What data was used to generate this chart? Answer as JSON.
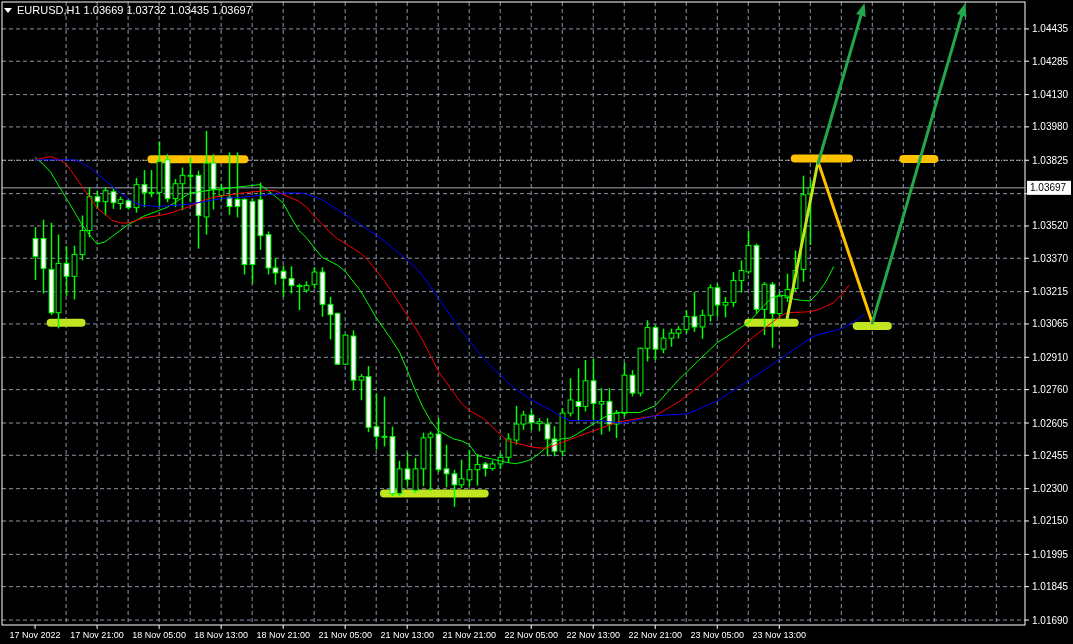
{
  "chart_data": {
    "type": "candlestick",
    "title": "EURUSD,H1  1.03669 1.03732 1.03435 1.03697",
    "color": "#00ff00",
    "categories": [
      "17 Nov 2022",
      null,
      null,
      null,
      null,
      null,
      null,
      null,
      "17 Nov 21:00",
      null,
      null,
      null,
      null,
      null,
      null,
      null,
      "18 Nov 05:00",
      null,
      null,
      null,
      null,
      null,
      null,
      null,
      "18 Nov 13:00",
      null,
      null,
      null,
      null,
      null,
      null,
      null,
      "18 Nov 21:00",
      null,
      null,
      null,
      null,
      null,
      null,
      null,
      "21 Nov 05:00",
      null,
      null,
      null,
      null,
      null,
      null,
      null,
      "21 Nov 13:00",
      null,
      null,
      null,
      null,
      null,
      null,
      null,
      "21 Nov 21:00",
      null,
      null,
      null,
      null,
      null,
      null,
      null,
      "22 Nov 05:00",
      null,
      null,
      null,
      null,
      null,
      null,
      null,
      "22 Nov 13:00",
      null,
      null,
      null,
      null,
      null,
      null,
      null,
      "22 Nov 21:00",
      null,
      null,
      null,
      null,
      null,
      null,
      null,
      "23 Nov 05:00",
      null,
      null,
      null,
      null,
      null,
      null,
      null,
      "23 Nov 13:00",
      null,
      null,
      null,
      null,
      null,
      null,
      null,
      null,
      null,
      null,
      null,
      null,
      null,
      null,
      null,
      null,
      null,
      null,
      null,
      null,
      null,
      null,
      null,
      null,
      null,
      null,
      null,
      null,
      null,
      null,
      null
    ],
    "ohlc": [
      [
        1.03462,
        1.03511,
        1.03272,
        1.03378
      ],
      [
        1.03462,
        1.03546,
        1.0321,
        1.03323
      ],
      [
        1.03318,
        1.03531,
        1.0311,
        1.03117
      ],
      [
        1.03117,
        1.03477,
        1.03048,
        1.03346
      ],
      [
        1.03346,
        1.03423,
        1.03199,
        1.03286
      ],
      [
        1.03286,
        1.03425,
        1.03182,
        1.03388
      ],
      [
        1.03388,
        1.03565,
        1.03364,
        1.03499
      ],
      [
        1.03499,
        1.03696,
        1.03472,
        1.03656
      ],
      [
        1.03656,
        1.03681,
        1.03603,
        1.03633
      ],
      [
        1.03633,
        1.03696,
        1.03573,
        1.03684
      ],
      [
        1.03679,
        1.03688,
        1.03603,
        1.03628
      ],
      [
        1.03624,
        1.03653,
        1.036,
        1.03642
      ],
      [
        1.03637,
        1.03645,
        1.036,
        1.03605
      ],
      [
        1.03605,
        1.03739,
        1.03585,
        1.03712
      ],
      [
        1.03712,
        1.03776,
        1.03611,
        1.03676
      ],
      [
        1.03676,
        1.03776,
        1.03657,
        1.03676
      ],
      [
        1.03676,
        1.03909,
        1.03611,
        1.03819
      ],
      [
        1.03827,
        1.0385,
        1.03634,
        1.03647
      ],
      [
        1.03647,
        1.03735,
        1.03611,
        1.03716
      ],
      [
        1.03716,
        1.03788,
        1.03596,
        1.03755
      ],
      [
        1.03755,
        1.03835,
        1.03634,
        1.03755
      ],
      [
        1.03755,
        1.03773,
        1.03418,
        1.03568
      ],
      [
        1.03562,
        1.03958,
        1.03483,
        1.03812
      ],
      [
        1.03812,
        1.0385,
        1.036,
        1.03691
      ],
      [
        1.03662,
        1.03713,
        1.03644,
        1.03687
      ],
      [
        1.03653,
        1.03858,
        1.03575,
        1.0361
      ],
      [
        1.03644,
        1.03858,
        1.03563,
        1.0361
      ],
      [
        1.03644,
        1.03644,
        1.03298,
        1.03341
      ],
      [
        1.03634,
        1.03644,
        1.03256,
        1.03341
      ],
      [
        1.03642,
        1.03718,
        1.03412,
        1.03475
      ],
      [
        1.0348,
        1.03491,
        1.03298,
        1.03325
      ],
      [
        1.03325,
        1.03367,
        1.03251,
        1.03302
      ],
      [
        1.0331,
        1.03333,
        1.03194,
        1.03276
      ],
      [
        1.03276,
        1.03329,
        1.0321,
        1.03244
      ],
      [
        1.03243,
        1.03249,
        1.03133,
        1.03243
      ],
      [
        1.03222,
        1.03259,
        1.03214,
        1.03244
      ],
      [
        1.03249,
        1.03325,
        1.03233,
        1.03306
      ],
      [
        1.03306,
        1.03325,
        1.03102,
        1.03156
      ],
      [
        1.03156,
        1.03187,
        1.02997,
        1.03108
      ],
      [
        1.03114,
        1.03114,
        1.02878,
        1.02878
      ],
      [
        1.02878,
        1.03013,
        1.02878,
        1.03013
      ],
      [
        1.03009,
        1.03032,
        1.02761,
        1.02804
      ],
      [
        1.02804,
        1.02829,
        1.02714,
        1.0282
      ],
      [
        1.0282,
        1.02866,
        1.02566,
        1.02585
      ],
      [
        1.02588,
        1.02739,
        1.02485,
        1.02543
      ],
      [
        1.02543,
        1.02724,
        1.025,
        1.02543
      ],
      [
        1.02542,
        1.02585,
        1.02269,
        1.02277
      ],
      [
        1.02277,
        1.02426,
        1.02269,
        1.02392
      ],
      [
        1.02392,
        1.02465,
        1.02315,
        1.02343
      ],
      [
        1.02292,
        1.02439,
        1.02283,
        1.02392
      ],
      [
        1.02392,
        1.02557,
        1.02315,
        1.02536
      ],
      [
        1.02539,
        1.02562,
        1.02292,
        1.02554
      ],
      [
        1.02554,
        1.02624,
        1.0238,
        1.02388
      ],
      [
        1.02392,
        1.025,
        1.0231,
        1.02369
      ],
      [
        1.02369,
        1.02384,
        1.02219,
        1.02318
      ],
      [
        1.02318,
        1.02431,
        1.02307,
        1.02346
      ],
      [
        1.02341,
        1.02477,
        1.02315,
        1.02388
      ],
      [
        1.02388,
        1.02458,
        1.02318,
        1.02412
      ],
      [
        1.02415,
        1.02421,
        1.0236,
        1.02394
      ],
      [
        1.02394,
        1.02427,
        1.02388,
        1.02415
      ],
      [
        1.02415,
        1.02462,
        1.02394,
        1.02446
      ],
      [
        1.02446,
        1.02554,
        1.02427,
        1.02531
      ],
      [
        1.02526,
        1.02681,
        1.02508,
        1.026
      ],
      [
        1.026,
        1.02658,
        1.02577,
        1.02642
      ],
      [
        1.02642,
        1.02662,
        1.02576,
        1.02607
      ],
      [
        1.02602,
        1.02624,
        1.0257,
        1.02611
      ],
      [
        1.026,
        1.02624,
        1.02454,
        1.02531
      ],
      [
        1.02531,
        1.02588,
        1.02454,
        1.02474
      ],
      [
        1.02474,
        1.0267,
        1.02454,
        1.02651
      ],
      [
        1.02651,
        1.0281,
        1.02639,
        1.02712
      ],
      [
        1.02705,
        1.02855,
        1.02616,
        1.02682
      ],
      [
        1.02682,
        1.02894,
        1.02662,
        1.02801
      ],
      [
        1.02801,
        1.02901,
        1.02616,
        1.02696
      ],
      [
        1.02693,
        1.02763,
        1.02554,
        1.02705
      ],
      [
        1.02705,
        1.02763,
        1.0257,
        1.026
      ],
      [
        1.026,
        1.02662,
        1.02539,
        1.0265
      ],
      [
        1.0265,
        1.02881,
        1.02639,
        1.02827
      ],
      [
        1.02827,
        1.02847,
        1.02732,
        1.02744
      ],
      [
        1.02744,
        1.02952,
        1.02732,
        1.02952
      ],
      [
        1.02952,
        1.03079,
        1.02894,
        1.03048
      ],
      [
        1.03048,
        1.03056,
        1.02901,
        1.02948
      ],
      [
        1.02948,
        1.0304,
        1.02932,
        1.02999
      ],
      [
        1.02999,
        1.0304,
        1.02963,
        1.03022
      ],
      [
        1.03022,
        1.03051,
        1.03001,
        1.0304
      ],
      [
        1.0304,
        1.03125,
        1.03025,
        1.03099
      ],
      [
        1.03099,
        1.0321,
        1.03032,
        1.03051
      ],
      [
        1.03051,
        1.03128,
        1.02999,
        1.03105
      ],
      [
        1.03105,
        1.03245,
        1.03079,
        1.03233
      ],
      [
        1.03233,
        1.03249,
        1.03102,
        1.03153
      ],
      [
        1.03153,
        1.03187,
        1.03099,
        1.03165
      ],
      [
        1.03165,
        1.03302,
        1.03148,
        1.03267
      ],
      [
        1.03267,
        1.03356,
        1.03214,
        1.03313
      ],
      [
        1.03307,
        1.03495,
        1.03301,
        1.03429
      ],
      [
        1.03429,
        1.03435,
        1.03117,
        1.03133
      ],
      [
        1.03133,
        1.03256,
        1.03017,
        1.03249
      ],
      [
        1.03249,
        1.03256,
        1.02958,
        1.03113
      ],
      [
        1.03113,
        1.0321,
        1.03097,
        1.03194
      ],
      [
        1.03187,
        1.03295,
        1.03171,
        1.03225
      ],
      [
        1.0323,
        1.03403,
        1.03218,
        1.03313
      ],
      [
        1.03318,
        1.0375,
        1.03264,
        1.03665
      ],
      [
        1.03669,
        1.03732,
        1.03435,
        1.03697
      ],
      null,
      null,
      null,
      null,
      null,
      null,
      null,
      null,
      null,
      null,
      null,
      null,
      null,
      null,
      null,
      null,
      null,
      null,
      null,
      null,
      null,
      null,
      null,
      null,
      null,
      null,
      null
    ],
    "series": [
      {
        "type": "line",
        "color": "#00ff00",
        "values": [
          1.03838,
          1.03808,
          1.0377,
          1.0371,
          1.0365,
          1.0359,
          1.03528,
          1.0348,
          1.03436,
          1.03446,
          1.03473,
          1.035,
          1.03526,
          1.03545,
          1.03565,
          1.03579,
          1.03592,
          1.03606,
          1.03628,
          1.03651,
          1.03673,
          1.03678,
          1.03683,
          1.03688,
          1.03692,
          1.03696,
          1.037,
          1.03704,
          1.03708,
          1.03712,
          1.03686,
          1.03657,
          1.03626,
          1.03561,
          1.035,
          1.03465,
          1.0342,
          1.03375,
          1.03356,
          1.03338,
          1.0331,
          1.03264,
          1.03218,
          1.03156,
          1.03094,
          1.03043,
          1.02991,
          1.02935,
          1.0285,
          1.0276,
          1.0268,
          1.02616,
          1.0257,
          1.0255,
          1.02531,
          1.02522,
          1.02505,
          1.02454,
          1.02445,
          1.02437,
          1.02429,
          1.02421,
          1.02416,
          1.02424,
          1.02436,
          1.02463,
          1.02493,
          1.02518,
          1.02532,
          1.02535,
          1.02556,
          1.02578,
          1.026,
          1.02622,
          1.02643,
          1.02654,
          1.02654,
          1.02654,
          1.02654,
          1.0267,
          1.02685,
          1.02725,
          1.02765,
          1.02805,
          1.0284,
          1.02875,
          1.0291,
          1.02944,
          1.02978,
          1.03001,
          1.03024,
          1.03048,
          1.03071,
          1.0311,
          1.0315,
          1.03185,
          1.03199,
          1.03195,
          1.03179,
          1.03174,
          1.03172,
          1.0321,
          1.0326,
          1.0333,
          null,
          null,
          null,
          null,
          null,
          null,
          null,
          null,
          null,
          null,
          null,
          null,
          null,
          null,
          null,
          null,
          null,
          null,
          null,
          null,
          null,
          null,
          null,
          null
        ]
      },
      {
        "type": "line",
        "color": "#ff0000",
        "values": [
          1.03827,
          1.03835,
          1.03842,
          1.03829,
          1.03809,
          1.03758,
          1.03707,
          1.03655,
          1.03603,
          1.03574,
          1.03545,
          1.03534,
          1.03534,
          1.03545,
          1.03557,
          1.03563,
          1.03569,
          1.03575,
          1.03587,
          1.03599,
          1.03611,
          1.03627,
          1.03643,
          1.03653,
          1.03658,
          1.03664,
          1.03669,
          1.03674,
          1.03678,
          1.03681,
          1.03685,
          1.03684,
          1.03666,
          1.03651,
          1.03635,
          1.03608,
          1.03566,
          1.0353,
          1.03493,
          1.0346,
          1.03439,
          1.03417,
          1.03393,
          1.03359,
          1.03313,
          1.03267,
          1.03216,
          1.0316,
          1.03105,
          1.0305,
          1.02989,
          1.02918,
          1.02847,
          1.02797,
          1.02747,
          1.02697,
          1.02664,
          1.02643,
          1.02622,
          1.02586,
          1.02553,
          1.02521,
          1.02512,
          1.02503,
          1.02494,
          1.02489,
          1.02488,
          1.02501,
          1.02515,
          1.02528,
          1.02542,
          1.02555,
          1.02568,
          1.02581,
          1.02595,
          1.02608,
          1.02614,
          1.0262,
          1.02627,
          1.02633,
          1.02639,
          1.0266,
          1.02681,
          1.02702,
          1.02729,
          1.02758,
          1.02788,
          1.02817,
          1.02847,
          1.02882,
          1.02916,
          1.02951,
          1.02986,
          1.03014,
          1.03042,
          1.0307,
          1.03098,
          1.03117,
          1.03119,
          1.0312,
          1.03122,
          1.03131,
          1.03147,
          1.03163,
          1.032,
          1.03245,
          null,
          null,
          null,
          null,
          null,
          null,
          null,
          null,
          null,
          null,
          null,
          null,
          null,
          null,
          null,
          null,
          null,
          null,
          null,
          null,
          null,
          null
        ]
      },
      {
        "type": "line",
        "color": "#0000ff",
        "values": [
          1.03827,
          1.03827,
          1.03827,
          1.03827,
          1.03827,
          1.03827,
          1.03815,
          1.03792,
          1.03764,
          1.03732,
          1.03704,
          1.03672,
          1.03647,
          1.03625,
          1.03615,
          1.03613,
          1.03611,
          1.03613,
          1.03616,
          1.03619,
          1.03622,
          1.03628,
          1.03635,
          1.03641,
          1.03647,
          1.0365,
          1.03652,
          1.03655,
          1.03658,
          1.03662,
          1.03665,
          1.03669,
          1.03672,
          1.03673,
          1.03673,
          1.03668,
          1.03655,
          1.03642,
          1.03619,
          1.03596,
          1.03573,
          1.03549,
          1.03526,
          1.03502,
          1.03477,
          1.03451,
          1.03422,
          1.03391,
          1.0336,
          1.03329,
          1.03289,
          1.03238,
          1.03186,
          1.03135,
          1.03083,
          1.03032,
          1.02988,
          1.02943,
          1.02899,
          1.02862,
          1.02828,
          1.02794,
          1.02763,
          1.02738,
          1.02713,
          1.02693,
          1.02675,
          1.02655,
          1.02632,
          1.02616,
          1.02616,
          1.02616,
          1.02616,
          1.02616,
          1.02611,
          1.02607,
          1.02605,
          1.02613,
          1.02622,
          1.0263,
          1.02639,
          1.02641,
          1.02643,
          1.02645,
          1.02647,
          1.0266,
          1.02676,
          1.02692,
          1.02708,
          1.02731,
          1.02754,
          1.02778,
          1.02801,
          1.02826,
          1.0285,
          1.02875,
          1.029,
          1.02924,
          1.02949,
          1.02974,
          1.02999,
          1.03015,
          1.03024,
          1.03033,
          1.03043,
          1.03063,
          1.03084,
          1.03109,
          null,
          null,
          null,
          null,
          null,
          null,
          null,
          null,
          null,
          null,
          null,
          null,
          null,
          null,
          null,
          null,
          null,
          null,
          null,
          null
        ]
      },
      {
        "type": "line",
        "color": "#ffc000",
        "values": [
          null,
          null,
          null,
          null,
          null,
          null,
          null,
          null,
          null,
          null,
          null,
          null,
          null,
          null,
          null,
          1.0383,
          1.0383,
          1.0383,
          1.0383,
          1.0383,
          1.0383,
          1.0383,
          1.0383,
          1.0383,
          1.0383,
          1.0383,
          1.0383,
          1.0383,
          null,
          null,
          null,
          null,
          null,
          null,
          null,
          null,
          null,
          null,
          null,
          null,
          null,
          null,
          null,
          null,
          null,
          null,
          null,
          null,
          null,
          null,
          null,
          null,
          null,
          null,
          null,
          null,
          null,
          null,
          null,
          null,
          null,
          null,
          null,
          null,
          null,
          null,
          null,
          null,
          null,
          null,
          null,
          null,
          null,
          null,
          null,
          null,
          null,
          null,
          null,
          null,
          null,
          null,
          null,
          null,
          null,
          null,
          null,
          null,
          null,
          null,
          null,
          null,
          null,
          null,
          null,
          null,
          null,
          null,
          1.03833,
          1.03833,
          1.03833,
          1.03833,
          1.03833,
          1.03833,
          1.03833,
          1.03833,
          null,
          null,
          null,
          null,
          null,
          null,
          1.03831,
          1.03831,
          1.03831,
          1.03831,
          1.03831,
          null,
          null,
          null,
          null,
          null,
          null,
          null,
          null,
          null,
          null,
          null
        ]
      },
      {
        "type": "line",
        "color": "#bfe61e",
        "values": [
          null,
          null,
          1.0307,
          1.0307,
          1.0307,
          1.0307,
          1.0307,
          null,
          null,
          null,
          null,
          null,
          null,
          null,
          null,
          null,
          null,
          null,
          null,
          null,
          null,
          null,
          null,
          null,
          null,
          null,
          null,
          null,
          null,
          null,
          null,
          null,
          null,
          null,
          null,
          null,
          null,
          null,
          null,
          null,
          null,
          null,
          null,
          null,
          null,
          1.02278,
          1.02278,
          1.02278,
          1.02278,
          1.02278,
          1.02278,
          1.02278,
          1.02278,
          1.02278,
          1.02278,
          1.02278,
          1.02278,
          1.02278,
          1.02278,
          null,
          null,
          null,
          null,
          null,
          null,
          null,
          null,
          null,
          null,
          null,
          null,
          null,
          null,
          null,
          null,
          null,
          null,
          null,
          null,
          null,
          null,
          null,
          null,
          null,
          null,
          null,
          null,
          null,
          null,
          null,
          null,
          null,
          1.03071,
          1.03071,
          1.03071,
          1.03071,
          1.03071,
          1.03071,
          1.03071,
          null,
          null,
          null,
          null,
          null,
          null,
          null,
          1.03056,
          1.03056,
          1.03056,
          1.03056,
          1.03056,
          null,
          null,
          null,
          null,
          null,
          null,
          null,
          null,
          null,
          null,
          null,
          null,
          null,
          null,
          null,
          null,
          null
        ]
      },
      {
        "type": "line",
        "color": "#bfe61e",
        "values": [
          null,
          null,
          null,
          null,
          null,
          null,
          null,
          null,
          null,
          null,
          null,
          null,
          null,
          null,
          null,
          null,
          null,
          null,
          null,
          null,
          null,
          null,
          null,
          null,
          null,
          null,
          null,
          null,
          null,
          null,
          null,
          null,
          null,
          null,
          null,
          null,
          null,
          null,
          null,
          null,
          null,
          null,
          null,
          null,
          null,
          null,
          null,
          null,
          null,
          null,
          null,
          null,
          null,
          null,
          null,
          null,
          null,
          null,
          null,
          null,
          null,
          null,
          null,
          null,
          null,
          null,
          null,
          null,
          null,
          null,
          null,
          null,
          null,
          null,
          null,
          null,
          null,
          null,
          null,
          null,
          null,
          null,
          null,
          null,
          null,
          null,
          null,
          null,
          null,
          null,
          null,
          null,
          null,
          null,
          null,
          null,
          null,
          1.03088,
          1.03271,
          1.03454,
          1.03636,
          1.03819,
          null,
          null,
          null,
          null,
          null,
          null,
          null,
          null,
          null,
          null,
          null,
          null,
          null,
          null,
          null,
          null,
          null,
          null,
          null,
          null,
          null,
          null,
          null,
          null,
          null,
          null
        ]
      },
      {
        "type": "line",
        "color": "#ffc000",
        "values": [
          null,
          null,
          null,
          null,
          null,
          null,
          null,
          null,
          null,
          null,
          null,
          null,
          null,
          null,
          null,
          null,
          null,
          null,
          null,
          null,
          null,
          null,
          null,
          null,
          null,
          null,
          null,
          null,
          null,
          null,
          null,
          null,
          null,
          null,
          null,
          null,
          null,
          null,
          null,
          null,
          null,
          null,
          null,
          null,
          null,
          null,
          null,
          null,
          null,
          null,
          null,
          null,
          null,
          null,
          null,
          null,
          null,
          null,
          null,
          null,
          null,
          null,
          null,
          null,
          null,
          null,
          null,
          null,
          null,
          null,
          null,
          null,
          null,
          null,
          null,
          null,
          null,
          null,
          null,
          null,
          null,
          null,
          null,
          null,
          null,
          null,
          null,
          null,
          null,
          null,
          null,
          null,
          null,
          null,
          null,
          null,
          null,
          null,
          null,
          null,
          null,
          1.03819,
          1.03712,
          1.03605,
          1.03498,
          1.0339,
          1.03283,
          1.03176,
          1.03069,
          null,
          null,
          null,
          null,
          null,
          null,
          null,
          null,
          null,
          null,
          null,
          null,
          null,
          null,
          null,
          null,
          null,
          null,
          null
        ]
      }
    ],
    "ref_lines": [
      {
        "axis": "y",
        "value": 1.03825,
        "color": "#c8c8c8",
        "line_style": "dotted"
      },
      {
        "axis": "y",
        "value": 1.03697,
        "label": "1.03697",
        "color": "#a0a8b0",
        "line_style": "solid"
      }
    ],
    "ylim": [
      1.01667,
      1.0456
    ],
    "yticks": [
      {
        "value": 1.04435,
        "label": "1.04435"
      },
      {
        "value": 1.04285,
        "label": "1.04285"
      },
      {
        "value": 1.0413,
        "label": "1.04130"
      },
      {
        "value": 1.0398,
        "label": "1.03980"
      },
      {
        "value": 1.03825,
        "label": "1.03825"
      },
      {
        "value": 1.0367,
        "label": null
      },
      {
        "value": 1.0352,
        "label": "1.03520"
      },
      {
        "value": 1.0337,
        "label": "1.03370"
      },
      {
        "value": 1.03215,
        "label": "1.03215"
      },
      {
        "value": 1.03065,
        "label": "1.03065"
      },
      {
        "value": 1.0291,
        "label": "1.02910"
      },
      {
        "value": 1.0276,
        "label": "1.02760"
      },
      {
        "value": 1.02605,
        "label": "1.02605"
      },
      {
        "value": 1.02455,
        "label": "1.02455"
      },
      {
        "value": 1.023,
        "label": "1.02300"
      },
      {
        "value": 1.0215,
        "label": "1.02150"
      },
      {
        "value": 1.01995,
        "label": "1.01995"
      },
      {
        "value": 1.01845,
        "label": "1.01845"
      },
      {
        "value": 1.0169,
        "label": "1.01690"
      }
    ],
    "grid": true
  }
}
